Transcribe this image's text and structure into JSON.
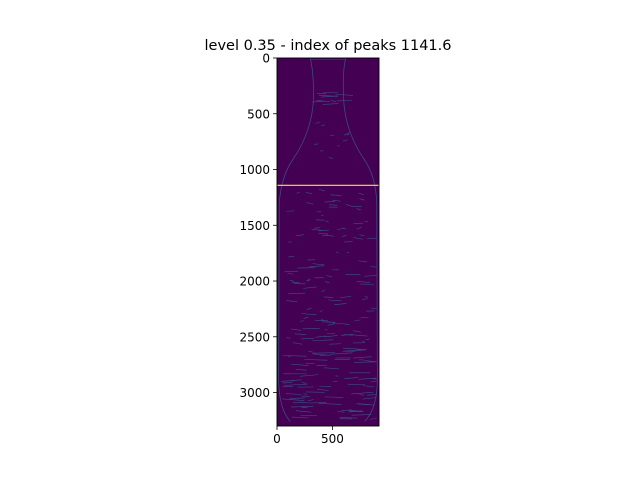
{
  "chart_data": {
    "type": "heatmap",
    "title": "level 0.35 - index of peaks 1141.6",
    "xlabel": "",
    "ylabel": "",
    "xlim": [
      0,
      920
    ],
    "ylim": [
      3300,
      0
    ],
    "x_ticks": [
      0,
      500
    ],
    "y_ticks": [
      0,
      500,
      1000,
      1500,
      2000,
      2500,
      3000
    ],
    "image_width": 920,
    "image_height": 3300,
    "peak_index": 1141.6,
    "colormap": "viridis",
    "colors": {
      "background": "#440154",
      "edges": "#3b528b",
      "peak_line": "#fde725"
    }
  }
}
